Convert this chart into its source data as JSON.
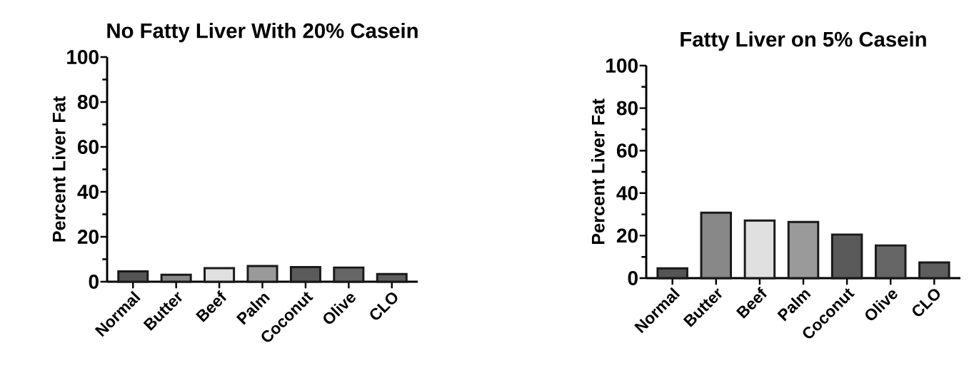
{
  "chart_data": [
    {
      "type": "bar",
      "title": "No Fatty Liver With 20% Casein",
      "ylabel": "Percent Liver Fat",
      "categories": [
        "Normal",
        "Butter",
        "Beef",
        "Palm",
        "Coconut",
        "Olive",
        "CLO"
      ],
      "values": [
        4.6,
        3.1,
        6,
        7,
        6.5,
        6.3,
        3.4
      ],
      "colors": [
        "#555555",
        "#888888",
        "#e0e0e0",
        "#9a9a9a",
        "#5a5a5a",
        "#666666",
        "#5e5e5e"
      ],
      "ylim": [
        0,
        100
      ],
      "yticks": [
        0,
        20,
        40,
        60,
        80,
        100
      ]
    },
    {
      "type": "bar",
      "title": "Fatty Liver on 5% Casein",
      "ylabel": "Percent Liver Fat",
      "categories": [
        "Normal",
        "Butter",
        "Beef",
        "Palm",
        "Coconut",
        "Olive",
        "CLO"
      ],
      "values": [
        4.6,
        30.8,
        27.1,
        26.4,
        20.5,
        15.4,
        7.4
      ],
      "colors": [
        "#555555",
        "#888888",
        "#e0e0e0",
        "#9a9a9a",
        "#5a5a5a",
        "#666666",
        "#5e5e5e"
      ],
      "ylim": [
        0,
        100
      ],
      "yticks": [
        0,
        20,
        40,
        60,
        80,
        100
      ]
    }
  ]
}
